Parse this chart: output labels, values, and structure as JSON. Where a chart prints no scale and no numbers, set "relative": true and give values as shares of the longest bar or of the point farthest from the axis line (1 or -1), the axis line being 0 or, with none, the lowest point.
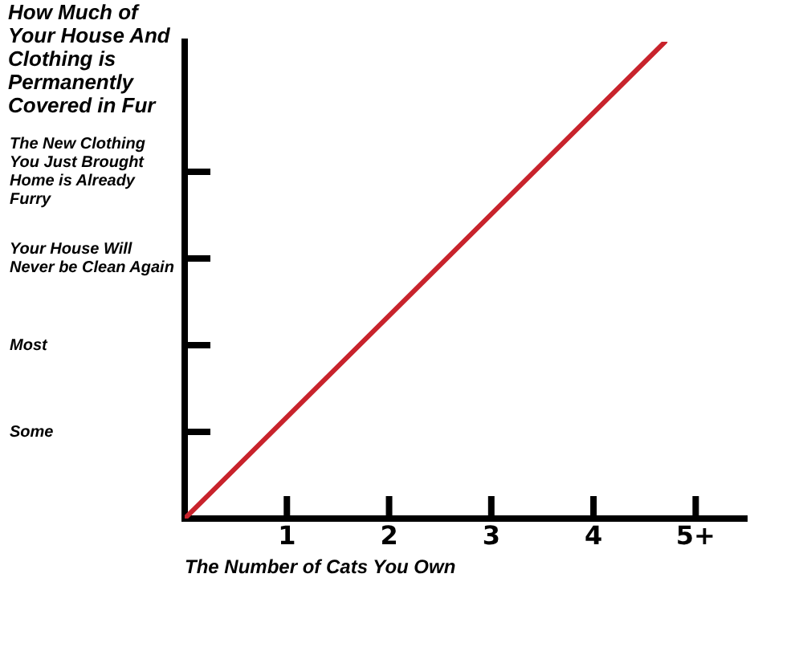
{
  "chart_data": {
    "type": "line",
    "relative": true,
    "ylabel": "How Much of Your House And Clothing is Permanently Covered in Fur",
    "xlabel": "The Number of Cats You Own",
    "x": [
      0,
      4.7
    ],
    "series": [
      {
        "color": "#c8232c",
        "values": [
          0,
          1
        ]
      }
    ],
    "xlim": [
      0,
      5.5
    ],
    "xticks": [
      1,
      2,
      3,
      4,
      {
        "value": 5,
        "label": "5+"
      }
    ],
    "annotations": [
      "Some",
      "Most",
      "Your House Will Never be Clean Again",
      "The New Clothing You Just Brought Home is Already Furry"
    ]
  }
}
